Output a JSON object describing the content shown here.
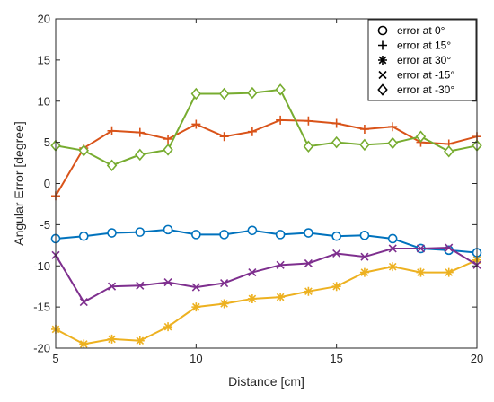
{
  "chart_data": {
    "type": "line",
    "xlabel": "Distance [cm]",
    "ylabel": "Angular Error [degree]",
    "xlim": [
      5,
      20
    ],
    "ylim": [
      -20,
      20
    ],
    "xticks": [
      5,
      10,
      15,
      20
    ],
    "yticks": [
      -20,
      -15,
      -10,
      -5,
      0,
      5,
      10,
      15,
      20
    ],
    "grid": false,
    "legend_position": "top-right",
    "x": [
      5,
      6,
      7,
      8,
      9,
      10,
      11,
      12,
      13,
      14,
      15,
      16,
      17,
      18,
      19,
      20
    ],
    "series": [
      {
        "name": "error at 0°",
        "marker": "circle",
        "color": "#0072BD",
        "values": [
          -6.7,
          -6.4,
          -6.0,
          -5.9,
          -5.6,
          -6.2,
          -6.2,
          -5.7,
          -6.2,
          -6.0,
          -6.4,
          -6.3,
          -6.7,
          -7.9,
          -8.1,
          -8.4
        ]
      },
      {
        "name": "error at 15°",
        "marker": "plus",
        "color": "#D95319",
        "values": [
          -1.5,
          4.3,
          6.4,
          6.2,
          5.4,
          7.2,
          5.7,
          6.3,
          7.7,
          7.6,
          7.3,
          6.6,
          6.9,
          5.0,
          4.8,
          5.7
        ]
      },
      {
        "name": "error at 30°",
        "marker": "asterisk",
        "color": "#EDB120",
        "values": [
          -17.7,
          -19.5,
          -18.9,
          -19.1,
          -17.4,
          -15.0,
          -14.6,
          -14.0,
          -13.8,
          -13.1,
          -12.5,
          -10.8,
          -10.1,
          -10.8,
          -10.8,
          -9.3
        ]
      },
      {
        "name": "error at -15°",
        "marker": "x",
        "color": "#7E2F8E",
        "values": [
          -8.7,
          -14.4,
          -12.5,
          -12.4,
          -12.0,
          -12.6,
          -12.1,
          -10.8,
          -9.9,
          -9.7,
          -8.5,
          -8.9,
          -7.9,
          -7.9,
          -7.8,
          -9.9
        ]
      },
      {
        "name": "error at -30°",
        "marker": "diamond",
        "color": "#77AC30",
        "values": [
          4.6,
          4.0,
          2.2,
          3.5,
          4.1,
          10.9,
          10.9,
          11.0,
          11.4,
          4.5,
          5.0,
          4.7,
          4.9,
          5.7,
          3.9,
          4.6
        ]
      }
    ]
  }
}
